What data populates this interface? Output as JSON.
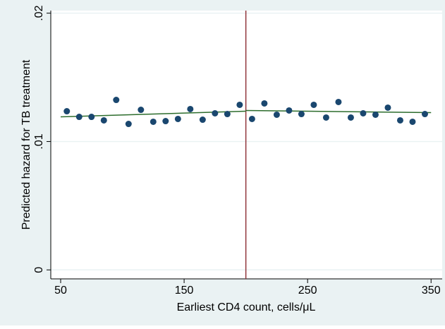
{
  "chart_data": {
    "type": "scatter",
    "x_label": "Earliest CD4 count, cells/μL",
    "y_label": "Predicted hazard for TB treatment",
    "x": [
      55,
      65,
      75,
      85,
      95,
      105,
      115,
      125,
      135,
      145,
      155,
      165,
      175,
      185,
      195,
      205,
      215,
      225,
      235,
      245,
      255,
      265,
      275,
      285,
      295,
      305,
      315,
      325,
      335,
      345
    ],
    "values": [
      0.01236,
      0.01192,
      0.01192,
      0.01165,
      0.01324,
      0.01137,
      0.01247,
      0.01154,
      0.01159,
      0.01176,
      0.01253,
      0.0117,
      0.0122,
      0.01214,
      0.01286,
      0.01176,
      0.01297,
      0.01209,
      0.01242,
      0.01214,
      0.01286,
      0.01187,
      0.01308,
      0.01187,
      0.0122,
      0.01209,
      0.01264,
      0.01165,
      0.01154,
      0.01214
    ],
    "color": "#1a476f",
    "fit_lines": [
      {
        "x": [
          50,
          200
        ],
        "values": [
          0.01192,
          0.01236
        ],
        "color": "#2d6d2d"
      },
      {
        "x": [
          200,
          350
        ],
        "values": [
          0.01242,
          0.01225
        ],
        "color": "#2d6d2d"
      }
    ],
    "vlines": [
      200
    ],
    "vline_color": "#90353b",
    "xlim": [
      42,
      359
    ],
    "ylim": [
      -0.0007,
      0.0202
    ],
    "xticks": [
      50,
      150,
      250,
      350
    ],
    "yticks": [
      0,
      {
        "value": 0.01,
        "label": ".01"
      },
      {
        "value": 0.02,
        "label": ".02"
      }
    ],
    "grid": true
  }
}
